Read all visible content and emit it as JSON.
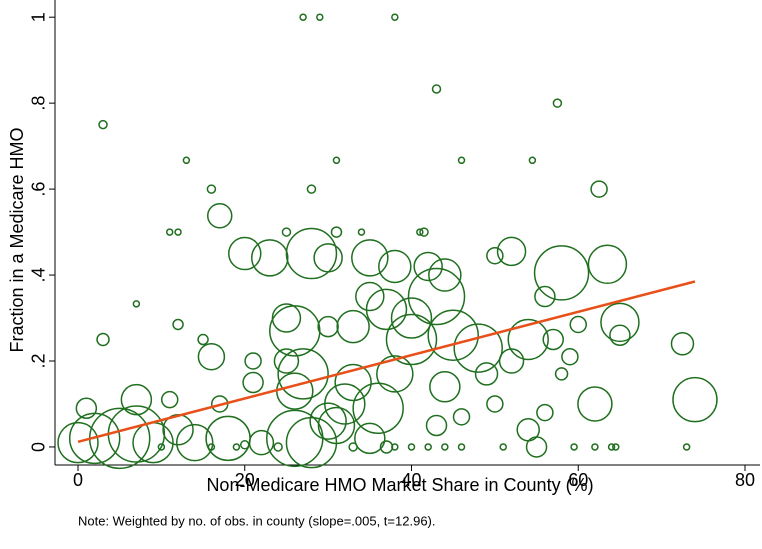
{
  "chart_data": {
    "type": "scatter",
    "x_label": "Non-Medicare HMO Market Share in County (%)",
    "y_label": "Fraction in a Medicare HMO",
    "note": "Note: Weighted by no. of obs. in county (slope=.005, t=12.96).",
    "xlim": [
      -2.76,
      81.8
    ],
    "ylim": [
      -0.042,
      1.04
    ],
    "xticks": [
      0,
      20,
      40,
      60,
      80
    ],
    "yticks": [
      {
        "value": 0,
        "label": "0"
      },
      {
        "value": 0.2,
        "label": ".2"
      },
      {
        "value": 0.4,
        "label": ".4"
      },
      {
        "value": 0.6,
        "label": ".6"
      },
      {
        "value": 0.8,
        "label": ".8"
      },
      {
        "value": 1,
        "label": "1"
      }
    ],
    "series": [
      {
        "color": "#1f6f1f",
        "x": [
          27,
          29,
          38,
          43,
          57.5,
          3,
          13,
          31,
          46,
          54.5,
          16,
          28,
          62.5,
          17,
          11,
          12,
          25,
          31,
          34,
          41,
          41.5,
          20,
          23,
          28,
          30,
          35,
          38,
          42,
          44,
          43,
          50,
          52,
          58,
          63.5,
          56,
          7,
          12,
          3,
          15,
          16,
          21,
          25,
          26,
          30,
          33,
          35,
          37,
          40,
          40,
          45,
          48,
          52,
          54,
          57,
          60,
          65,
          65,
          72.5,
          59,
          7,
          11,
          17,
          21,
          25,
          26,
          27,
          33,
          36,
          38,
          44,
          49,
          50,
          54,
          56,
          62,
          74,
          58,
          43,
          46,
          30,
          32,
          0,
          1,
          2,
          5,
          7,
          9,
          12,
          14,
          18,
          22,
          26,
          28,
          31,
          35,
          37,
          38,
          40,
          42,
          44,
          46,
          51,
          55,
          59.5,
          62,
          64,
          64.5,
          73,
          19,
          24,
          16,
          10,
          20,
          33
        ],
        "values": [
          1,
          1,
          1,
          0.833,
          0.8,
          0.75,
          0.667,
          0.667,
          0.667,
          0.667,
          0.6,
          0.6,
          0.6,
          0.538,
          0.5,
          0.5,
          0.5,
          0.5,
          0.5,
          0.5,
          0.5,
          0.45,
          0.44,
          0.45,
          0.44,
          0.44,
          0.42,
          0.42,
          0.4,
          0.35,
          0.445,
          0.455,
          0.405,
          0.425,
          0.35,
          0.333,
          0.285,
          0.25,
          0.25,
          0.21,
          0.2,
          0.3,
          0.27,
          0.28,
          0.28,
          0.35,
          0.32,
          0.3,
          0.25,
          0.26,
          0.23,
          0.2,
          0.25,
          0.25,
          0.285,
          0.29,
          0.26,
          0.24,
          0.21,
          0.11,
          0.11,
          0.1,
          0.15,
          0.2,
          0.13,
          0.17,
          0.15,
          0.09,
          0.17,
          0.14,
          0.17,
          0.1,
          0.04,
          0.08,
          0.1,
          0.11,
          0.17,
          0.05,
          0.07,
          0.06,
          0.1,
          0.01,
          0.09,
          0.02,
          0.02,
          0.03,
          0.01,
          0.04,
          0.01,
          0.02,
          0.01,
          0.02,
          0.01,
          0.05,
          0.02,
          0,
          0,
          0,
          0,
          0,
          0,
          0,
          0,
          0,
          0,
          0,
          0,
          0,
          0,
          0,
          0,
          0,
          0.005,
          0
        ],
        "sizes": [
          3,
          3,
          3,
          4,
          4,
          4,
          3,
          3,
          3,
          3,
          4,
          4,
          8,
          12,
          3,
          3,
          4,
          5,
          3,
          3,
          4,
          16,
          18,
          25,
          14,
          18,
          16,
          14,
          16,
          28,
          8,
          14,
          27,
          19,
          10,
          3,
          5,
          6,
          5,
          13,
          8,
          14,
          25,
          10,
          16,
          14,
          20,
          20,
          25,
          25,
          24,
          12,
          20,
          10,
          8,
          19,
          10,
          11,
          8,
          15,
          8,
          8,
          10,
          12,
          18,
          25,
          18,
          25,
          18,
          15,
          11,
          8,
          11,
          8,
          17,
          22,
          6,
          10,
          8,
          18,
          20,
          20,
          10,
          25,
          30,
          28,
          20,
          15,
          18,
          22,
          12,
          28,
          25,
          18,
          15,
          6,
          3,
          3,
          3,
          3,
          3,
          3,
          10,
          3,
          3,
          3,
          3,
          3,
          3,
          4,
          3,
          3,
          4,
          4
        ]
      },
      {
        "type": "line",
        "color": "#e8501a",
        "x": [
          0,
          74
        ],
        "values": [
          0.012,
          0.385
        ]
      }
    ]
  }
}
